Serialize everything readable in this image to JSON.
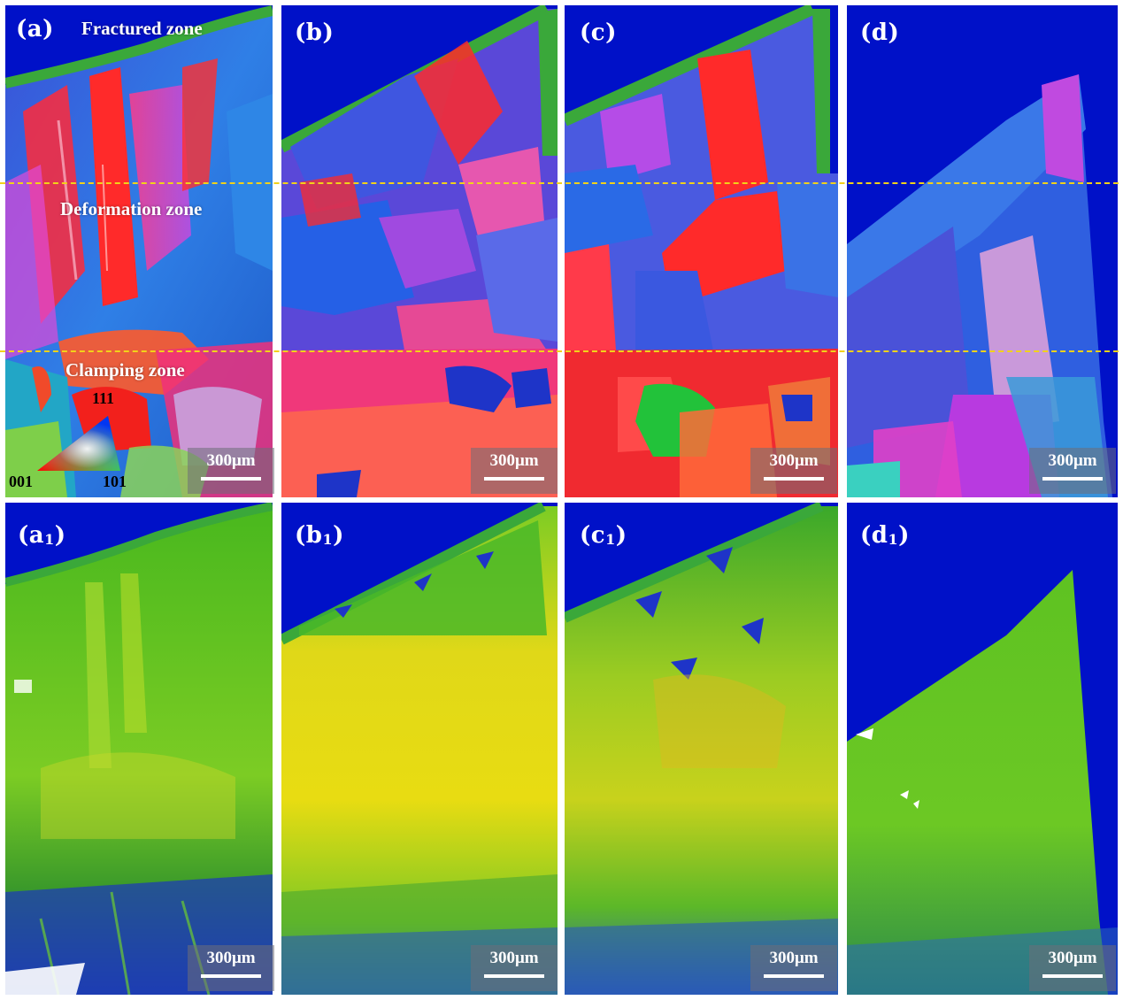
{
  "panels": {
    "a": {
      "label": "(a)"
    },
    "b": {
      "label": "(b)"
    },
    "c": {
      "label": "(c)"
    },
    "d": {
      "label": "(d)"
    },
    "a1": {
      "label": "(a",
      "sub": "1",
      "close": ")"
    },
    "b1": {
      "label": "(b",
      "sub": "1",
      "close": ")"
    },
    "c1": {
      "label": "(c",
      "sub": "1",
      "close": ")"
    },
    "d1": {
      "label": "(d",
      "sub": "1",
      "close": ")"
    }
  },
  "zones": {
    "fractured": "Fractured zone",
    "deformation": "Deformation zone",
    "clamping": "Clamping zone"
  },
  "scale_bar": {
    "label": "300μm"
  },
  "ipf_key": {
    "top": "111",
    "left": "001",
    "right": "101"
  },
  "colors": {
    "background_blue": "#0011c8",
    "divider_dash": "#f2d21a",
    "kam_green": "#3fbf1c",
    "kam_yellow": "#e8dc12",
    "ipf_red": "#f0201c",
    "ipf_blue": "#2f5fe0",
    "ipf_purple": "#9b3be0"
  }
}
